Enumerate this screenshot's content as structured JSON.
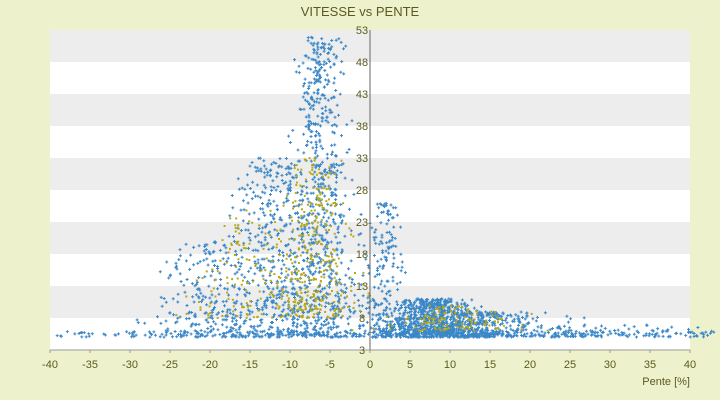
{
  "chart_data": {
    "type": "scatter",
    "title": "VITESSE vs PENTE",
    "xlabel": "Pente [%]",
    "ylabel": "",
    "xlim": [
      -40,
      40
    ],
    "ylim": [
      3,
      53
    ],
    "x_ticks": [
      -40,
      -35,
      -30,
      -25,
      -20,
      -15,
      -10,
      -5,
      0,
      5,
      10,
      15,
      20,
      25,
      30,
      35,
      40
    ],
    "y_ticks": [
      3,
      8,
      13,
      18,
      23,
      28,
      33,
      38,
      43,
      48,
      53
    ],
    "grid": "horizontal bands",
    "legend": "none",
    "series": [
      {
        "color": "#3a87c8",
        "marker": "plus",
        "clusters": [
          {
            "x_center": -6,
            "x_spread": 2.5,
            "y_min": 5,
            "y_max": 52,
            "count": 700
          },
          {
            "x_center": -12,
            "x_spread": 4,
            "y_min": 5,
            "y_max": 33,
            "count": 500
          },
          {
            "x_center": -20,
            "x_spread": 4,
            "y_min": 5,
            "y_max": 20,
            "count": 220
          },
          {
            "x_center": 8,
            "x_spread": 4,
            "y_min": 5,
            "y_max": 11,
            "count": 900
          },
          {
            "x_center": 15,
            "x_spread": 7,
            "y_min": 5,
            "y_max": 9,
            "count": 320
          },
          {
            "x_center": 2,
            "x_spread": 1.5,
            "y_min": 5,
            "y_max": 26,
            "count": 180
          },
          {
            "x_center": 30,
            "x_spread": 10,
            "y_min": 5,
            "y_max": 7,
            "count": 80
          }
        ],
        "flat_line": {
          "x_min": -40,
          "x_max": 43,
          "y_min": 5,
          "y_max": 6,
          "count": 260
        }
      },
      {
        "color": "#b8a818",
        "marker": "dot",
        "clusters": [
          {
            "x_center": -7,
            "x_spread": 3,
            "y_min": 8,
            "y_max": 33,
            "count": 350
          },
          {
            "x_center": -15,
            "x_spread": 4,
            "y_min": 8,
            "y_max": 25,
            "count": 120
          },
          {
            "x_center": 10,
            "x_spread": 5,
            "y_min": 6,
            "y_max": 10,
            "count": 120
          }
        ]
      }
    ]
  }
}
